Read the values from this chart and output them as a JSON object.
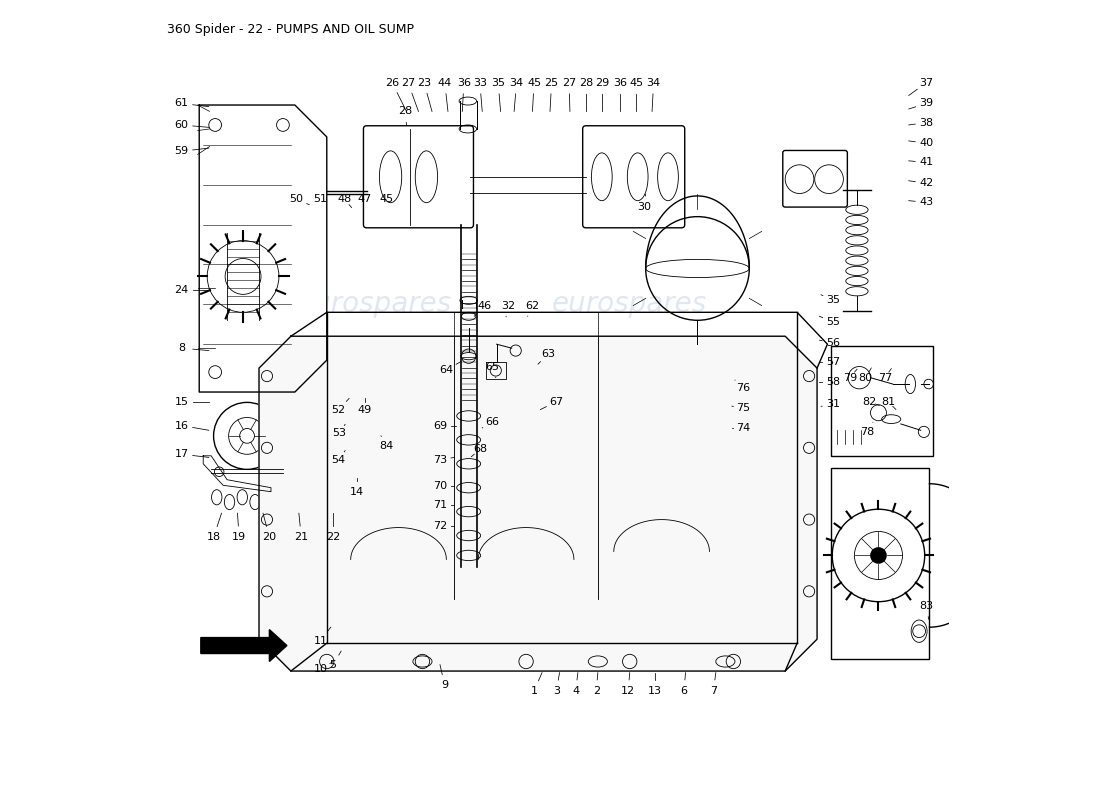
{
  "title": "360 Spider - 22 - PUMPS AND OIL SUMP",
  "bg_color": "#ffffff",
  "line_color": "#000000",
  "title_fontsize": 9,
  "label_fontsize": 8,
  "watermark": "eurospares",
  "watermark_color": "#c8d4e8",
  "fig_width": 11.0,
  "fig_height": 8.0
}
